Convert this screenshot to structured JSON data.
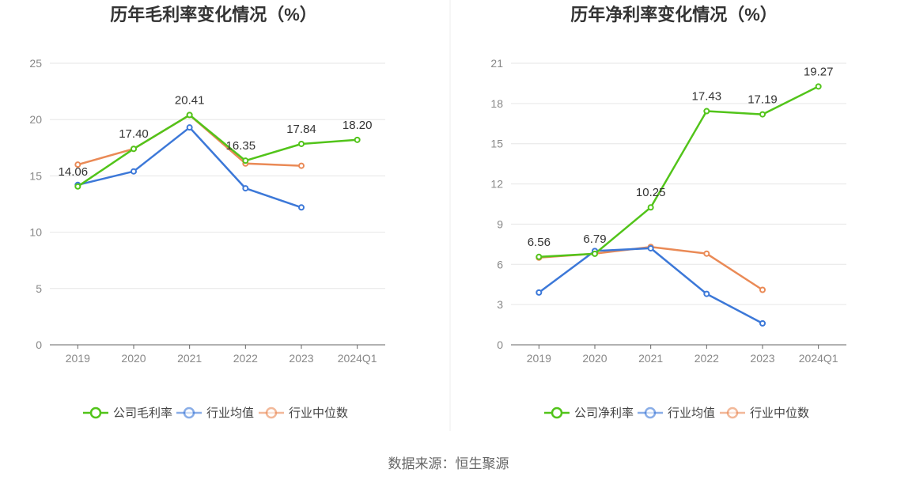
{
  "source": "数据来源：恒生聚源",
  "chart_data": [
    {
      "type": "line",
      "title": "历年毛利率变化情况（%）",
      "categories": [
        "2019",
        "2020",
        "2021",
        "2022",
        "2023",
        "2024Q1"
      ],
      "ylim": [
        0,
        25
      ],
      "yticks": [
        0,
        5,
        10,
        15,
        20,
        25
      ],
      "series": [
        {
          "name": "公司毛利率",
          "color": "#52c41a",
          "values": [
            14.06,
            17.4,
            20.41,
            16.35,
            17.84,
            18.2
          ],
          "labels": [
            "14.06",
            "17.40",
            "20.41",
            "16.35",
            "17.84",
            "18.20"
          ],
          "show_labels": true
        },
        {
          "name": "行业均值",
          "color": "#3c78d8",
          "values": [
            14.2,
            15.4,
            19.3,
            13.9,
            12.2,
            null
          ],
          "show_labels": false
        },
        {
          "name": "行业中位数",
          "color": "#ea8a56",
          "values": [
            16.0,
            17.4,
            20.4,
            16.1,
            15.9,
            null
          ],
          "show_labels": false
        }
      ]
    },
    {
      "type": "line",
      "title": "历年净利率变化情况（%）",
      "categories": [
        "2019",
        "2020",
        "2021",
        "2022",
        "2023",
        "2024Q1"
      ],
      "ylim": [
        0,
        21
      ],
      "yticks": [
        0,
        3,
        6,
        9,
        12,
        15,
        18,
        21
      ],
      "series": [
        {
          "name": "公司净利率",
          "color": "#52c41a",
          "values": [
            6.56,
            6.79,
            10.25,
            17.43,
            17.19,
            19.27
          ],
          "labels": [
            "6.56",
            "6.79",
            "10.25",
            "17.43",
            "17.19",
            "19.27"
          ],
          "show_labels": true
        },
        {
          "name": "行业均值",
          "color": "#3c78d8",
          "values": [
            3.9,
            7.0,
            7.2,
            3.8,
            1.6,
            null
          ],
          "show_labels": false
        },
        {
          "name": "行业中位数",
          "color": "#ea8a56",
          "values": [
            6.5,
            6.8,
            7.3,
            6.8,
            4.1,
            null
          ],
          "show_labels": false
        }
      ]
    }
  ]
}
